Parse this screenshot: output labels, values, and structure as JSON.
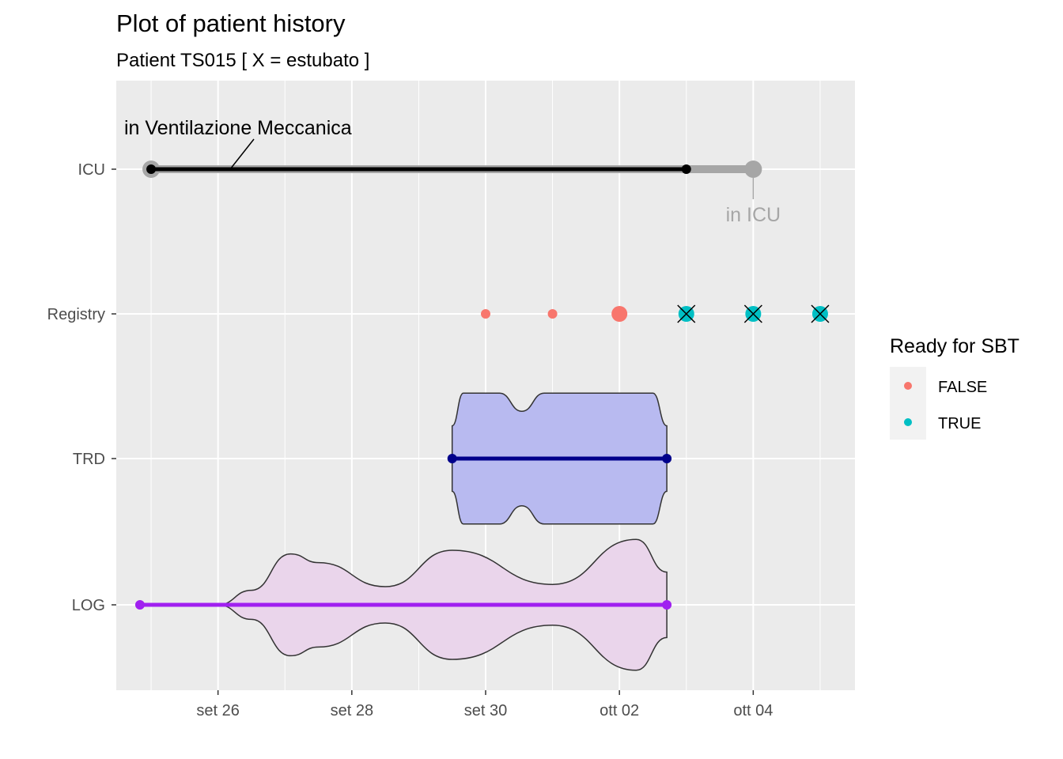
{
  "chart_data": {
    "type": "patient-timeline",
    "title": "Plot of patient history",
    "subtitle": "Patient TS015 [ X = estubato ]",
    "x_axis": {
      "type": "date",
      "range": [
        "2023-09-24T11:30",
        "2023-10-05T12:30"
      ],
      "ticks": [
        {
          "date": "2023-09-26",
          "label": "set 26"
        },
        {
          "date": "2023-09-28",
          "label": "set 28"
        },
        {
          "date": "2023-09-30",
          "label": "set 30"
        },
        {
          "date": "2023-10-02",
          "label": "ott 02"
        },
        {
          "date": "2023-10-04",
          "label": "ott 04"
        }
      ],
      "minor_ticks": [
        "2023-09-25",
        "2023-09-27",
        "2023-09-29",
        "2023-10-01",
        "2023-10-03",
        "2023-10-05"
      ]
    },
    "y_axis": {
      "type": "category",
      "categories": [
        "LOG",
        "TRD",
        "Registry",
        "ICU"
      ]
    },
    "background": "#ebebeb",
    "grid": true,
    "icu_stay": {
      "start": "2023-09-25T00:00",
      "end": "2023-10-04T00:00",
      "color": "#a6a6a6",
      "label": "in ICU"
    },
    "ventilation": {
      "start": "2023-09-25T00:00",
      "end": "2023-10-03T00:00",
      "color": "#000000",
      "label": "in Ventilazione Meccanica"
    },
    "registry": {
      "color_false": "#f8766d",
      "color_true": "#00bfc4",
      "points": [
        {
          "date": "2023-09-30",
          "ready_for_sbt": false,
          "extubated": false,
          "size": "small"
        },
        {
          "date": "2023-10-01",
          "ready_for_sbt": false,
          "extubated": false,
          "size": "small"
        },
        {
          "date": "2023-10-02",
          "ready_for_sbt": false,
          "extubated": false,
          "size": "large"
        },
        {
          "date": "2023-10-03",
          "ready_for_sbt": true,
          "extubated": true,
          "size": "large"
        },
        {
          "date": "2023-10-04",
          "ready_for_sbt": true,
          "extubated": true,
          "size": "large"
        },
        {
          "date": "2023-10-05",
          "ready_for_sbt": true,
          "extubated": true,
          "size": "large"
        }
      ]
    },
    "trd": {
      "start": "2023-09-29T12:00",
      "end": "2023-10-02T17:00",
      "line_color": "#00008b",
      "fill_color": "#b8baf0",
      "density_profile": [
        {
          "date": "2023-09-29T12:00",
          "width": 0.45
        },
        {
          "date": "2023-09-29T16:00",
          "width": 0.9
        },
        {
          "date": "2023-09-30T05:00",
          "width": 0.9
        },
        {
          "date": "2023-09-30T13:00",
          "width": 0.65
        },
        {
          "date": "2023-09-30T21:00",
          "width": 0.9
        },
        {
          "date": "2023-10-02T12:00",
          "width": 0.9
        },
        {
          "date": "2023-10-02T17:00",
          "width": 0.45
        }
      ]
    },
    "log": {
      "start": "2023-09-24T20:00",
      "end": "2023-10-02T17:00",
      "line_color": "#a020f0",
      "fill_color": "#ead5eb",
      "density_profile": [
        {
          "date": "2023-09-26T00:00",
          "width": 0.0
        },
        {
          "date": "2023-09-26T12:00",
          "width": 0.2
        },
        {
          "date": "2023-09-27T02:00",
          "width": 0.7
        },
        {
          "date": "2023-09-27T12:00",
          "width": 0.58
        },
        {
          "date": "2023-09-28T12:00",
          "width": 0.25
        },
        {
          "date": "2023-09-29T12:00",
          "width": 0.75
        },
        {
          "date": "2023-10-01T00:00",
          "width": 0.28
        },
        {
          "date": "2023-10-02T06:00",
          "width": 0.9
        },
        {
          "date": "2023-10-02T17:00",
          "width": 0.45
        }
      ]
    },
    "legend": {
      "title": "Ready for SBT",
      "placement": "right",
      "entries": [
        {
          "label": "FALSE",
          "color": "#f8766d"
        },
        {
          "label": "TRUE",
          "color": "#00bfc4"
        }
      ]
    }
  }
}
